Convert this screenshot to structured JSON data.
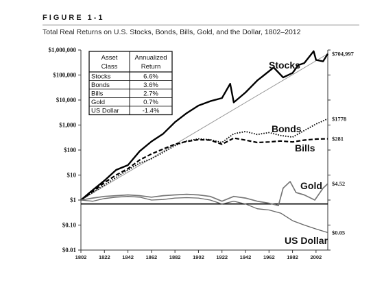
{
  "figure": {
    "label": "FIGURE 1-1",
    "title": "Total Real Returns on U.S. Stocks, Bonds, Bills, Gold, and the Dollar, 1802–2012"
  },
  "chart_data": {
    "type": "line",
    "title": "Total Real Returns on U.S. Stocks, Bonds, Bills, Gold, and the Dollar, 1802–2012",
    "yscale": "log",
    "ylim": [
      0.01,
      1000000
    ],
    "xlim": [
      1802,
      2012
    ],
    "grid": false,
    "x_ticks": [
      "1802",
      "1822",
      "1842",
      "1862",
      "1882",
      "1902",
      "1922",
      "1942",
      "1962",
      "1982",
      "2002"
    ],
    "y_ticks": [
      {
        "value": 1000000,
        "label": "$1,000,000"
      },
      {
        "value": 100000,
        "label": "$100,000"
      },
      {
        "value": 10000,
        "label": "$10,000"
      },
      {
        "value": 1000,
        "label": "$1,000"
      },
      {
        "value": 100,
        "label": "$100"
      },
      {
        "value": 10,
        "label": "$10"
      },
      {
        "value": 1,
        "label": "$1"
      },
      {
        "value": 0.1,
        "label": "$0.10"
      },
      {
        "value": 0.01,
        "label": "$0.01"
      }
    ],
    "series": [
      {
        "name": "Stocks",
        "end_label": "$704,997",
        "color": "#000000",
        "x": [
          1802,
          1812,
          1822,
          1832,
          1842,
          1852,
          1862,
          1872,
          1882,
          1892,
          1902,
          1912,
          1922,
          1929,
          1932,
          1942,
          1952,
          1966,
          1974,
          1982,
          1987,
          1992,
          2000,
          2002,
          2008,
          2012
        ],
        "y": [
          1,
          2.5,
          6,
          16,
          25,
          90,
          220,
          450,
          1300,
          3000,
          6000,
          9000,
          12000,
          45000,
          8000,
          20000,
          60000,
          200000,
          80000,
          120000,
          250000,
          300000,
          900000,
          400000,
          350000,
          704997
        ]
      },
      {
        "name": "Bonds",
        "end_label": "$1778",
        "color": "#000000",
        "x": [
          1802,
          1812,
          1822,
          1832,
          1842,
          1852,
          1862,
          1872,
          1882,
          1892,
          1902,
          1912,
          1922,
          1932,
          1942,
          1952,
          1962,
          1972,
          1982,
          1992,
          2002,
          2012
        ],
        "y": [
          1,
          2,
          4,
          8,
          16,
          30,
          45,
          80,
          150,
          230,
          280,
          260,
          200,
          450,
          550,
          420,
          500,
          380,
          330,
          600,
          1100,
          1778
        ]
      },
      {
        "name": "Bills",
        "end_label": "$281",
        "color": "#000000",
        "x": [
          1802,
          1812,
          1822,
          1832,
          1842,
          1852,
          1862,
          1872,
          1882,
          1892,
          1902,
          1912,
          1922,
          1932,
          1942,
          1952,
          1962,
          1972,
          1982,
          1992,
          2002,
          2012
        ],
        "y": [
          1,
          2.2,
          5,
          10,
          18,
          40,
          70,
          110,
          170,
          220,
          260,
          250,
          170,
          300,
          250,
          200,
          210,
          230,
          210,
          250,
          275,
          281
        ]
      },
      {
        "name": "Gold",
        "end_label": "$4.52",
        "color": "#777777",
        "x": [
          1802,
          1812,
          1822,
          1832,
          1842,
          1852,
          1862,
          1872,
          1882,
          1892,
          1902,
          1912,
          1922,
          1932,
          1942,
          1952,
          1962,
          1970,
          1974,
          1980,
          1985,
          1992,
          2001,
          2008,
          2012
        ],
        "y": [
          1,
          1.2,
          1.4,
          1.5,
          1.6,
          1.5,
          1.3,
          1.5,
          1.6,
          1.7,
          1.6,
          1.4,
          0.9,
          1.4,
          1.2,
          0.9,
          0.75,
          0.6,
          3,
          5.5,
          2,
          1.6,
          1,
          3,
          4.52
        ]
      },
      {
        "name": "US Dollar",
        "end_label": "$0.05",
        "color": "#666666",
        "x": [
          1802,
          1812,
          1822,
          1832,
          1842,
          1852,
          1862,
          1872,
          1882,
          1892,
          1902,
          1912,
          1922,
          1932,
          1942,
          1952,
          1962,
          1972,
          1982,
          1992,
          2002,
          2012
        ],
        "y": [
          1,
          0.9,
          1.15,
          1.3,
          1.4,
          1.3,
          1.0,
          1.05,
          1.2,
          1.25,
          1.2,
          1.0,
          0.7,
          0.9,
          0.7,
          0.45,
          0.4,
          0.3,
          0.15,
          0.1,
          0.07,
          0.05
        ]
      }
    ],
    "reference_lines": [
      {
        "type": "hline",
        "y": 0.7,
        "color": "#000000"
      },
      {
        "type": "trend",
        "x": [
          1802,
          2012
        ],
        "y": [
          1,
          704997
        ],
        "color": "#999999"
      }
    ],
    "table": {
      "headers": [
        [
          "Asset",
          "Class"
        ],
        [
          "Annualized",
          "Return"
        ]
      ],
      "rows": [
        [
          "Stocks",
          "6.6%"
        ],
        [
          "Bonds",
          "3.6%"
        ],
        [
          "Bills",
          "2.7%"
        ],
        [
          "Gold",
          "0.7%"
        ],
        [
          "US Dollar",
          "-1.4%"
        ]
      ]
    }
  }
}
